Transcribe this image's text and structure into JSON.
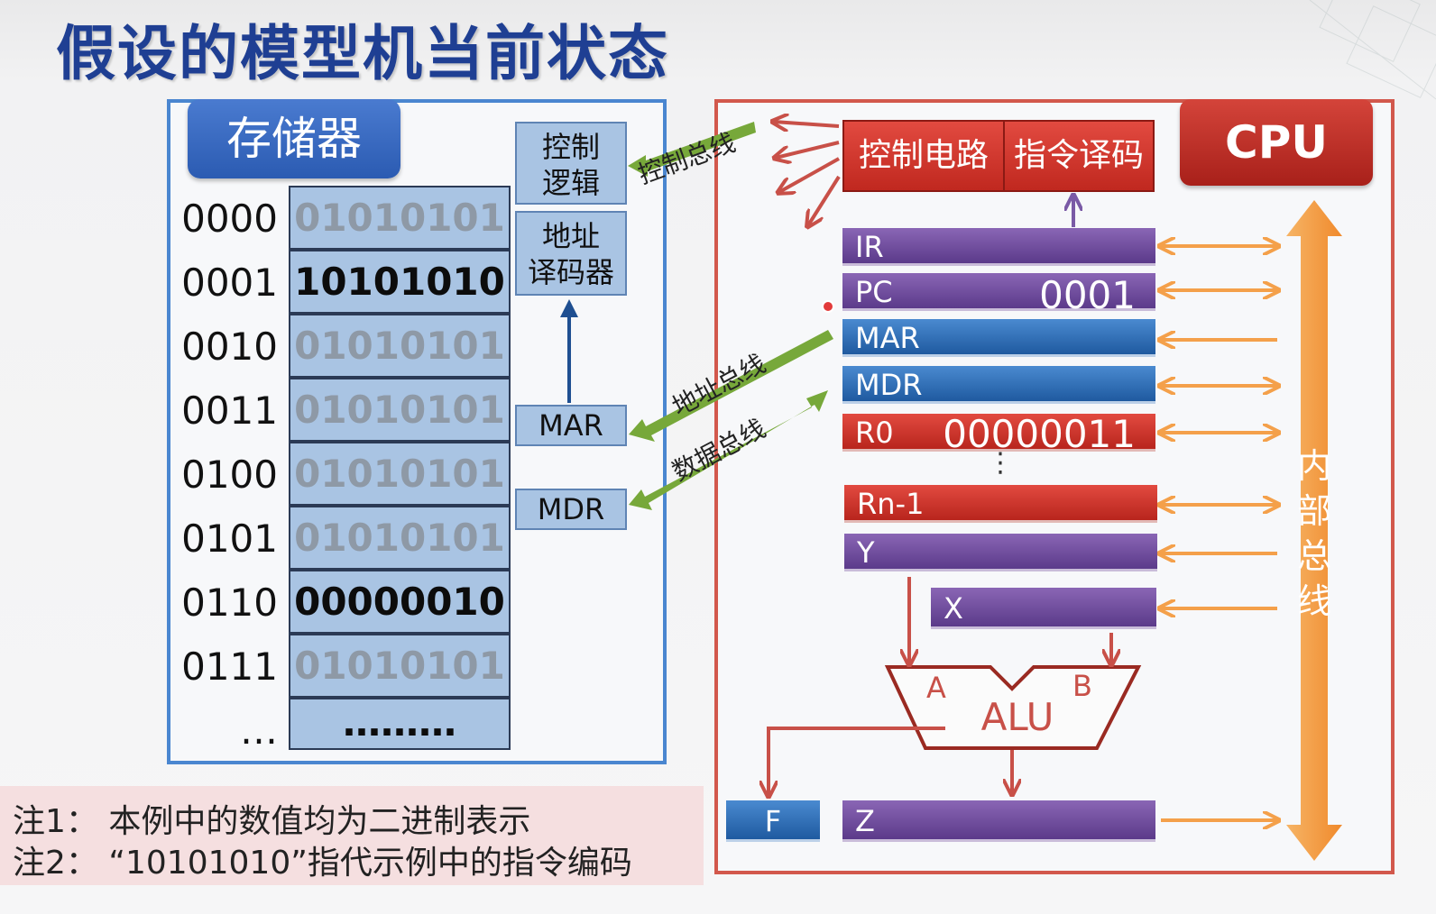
{
  "title": "假设的模型机当前状态",
  "memory": {
    "label": "存储器",
    "rows": [
      {
        "addr": "0000",
        "value": "01010101",
        "highlight": false
      },
      {
        "addr": "0001",
        "value": "10101010",
        "highlight": true
      },
      {
        "addr": "0010",
        "value": "01010101",
        "highlight": false
      },
      {
        "addr": "0011",
        "value": "01010101",
        "highlight": false
      },
      {
        "addr": "0100",
        "value": "01010101",
        "highlight": false
      },
      {
        "addr": "0101",
        "value": "01010101",
        "highlight": false
      },
      {
        "addr": "0110",
        "value": "00000010",
        "highlight": true
      },
      {
        "addr": "0111",
        "value": "01010101",
        "highlight": false
      },
      {
        "addr": "…",
        "value": "………",
        "highlight": false
      }
    ],
    "control_logic": [
      "控制",
      "逻辑"
    ],
    "addr_decoder": [
      "地址",
      "译码器"
    ],
    "mar": "MAR",
    "mdr": "MDR"
  },
  "buses": {
    "control": "控制总线",
    "address": "地址总线",
    "data": "数据总线",
    "internal": "内部总线"
  },
  "cpu": {
    "label": "CPU",
    "control_circuit": "控制电路",
    "instr_decode": "指令译码",
    "ellipsis": "⋮",
    "alu": {
      "name": "ALU",
      "in_a": "A",
      "in_b": "B"
    },
    "registers": [
      {
        "name": "IR",
        "value": ""
      },
      {
        "name": "PC",
        "value": "0001"
      },
      {
        "name": "MAR",
        "value": ""
      },
      {
        "name": "MDR",
        "value": ""
      },
      {
        "name": "R0",
        "value": "00000011"
      },
      {
        "name": "Rn-1",
        "value": ""
      },
      {
        "name": "Y",
        "value": ""
      },
      {
        "name": "X",
        "value": ""
      },
      {
        "name": "Z",
        "value": ""
      }
    ],
    "flag": "F"
  },
  "notes": [
    "注1：  本例中的数值均为二进制表示",
    "注2：  “10101010”指代示例中的指令编码"
  ],
  "colors": {
    "title": "#1f3f93",
    "memory_accent": "#2b5bb2",
    "cpu_accent": "#c0281f",
    "bus_green": "#77a83a",
    "internal_bus": "#f4a04a"
  }
}
